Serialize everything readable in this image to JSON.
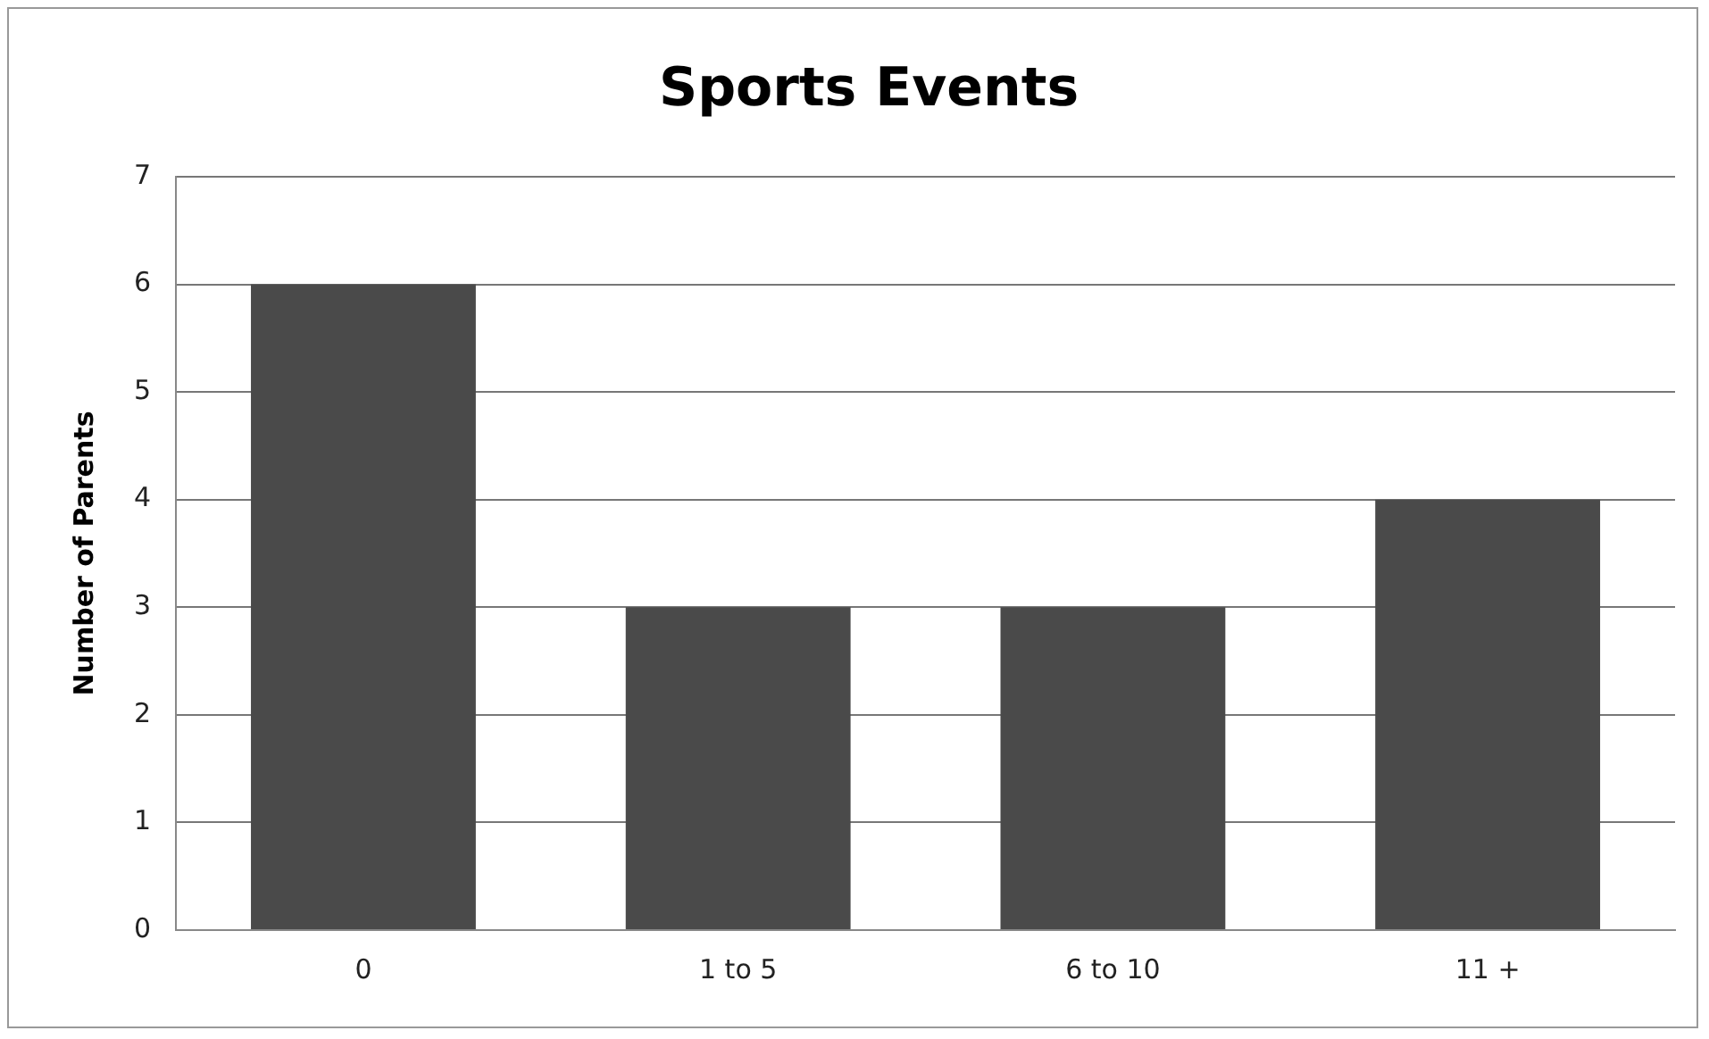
{
  "chart_data": {
    "type": "bar",
    "title": "Sports Events",
    "ylabel": "Number of Parents",
    "categories": [
      "0",
      "1 to 5",
      "6 to 10",
      "11 +"
    ],
    "values": [
      6,
      3,
      3,
      4
    ],
    "color": "#4a4a4a",
    "ylim": [
      0,
      7
    ],
    "yticks": [
      0,
      1,
      2,
      3,
      4,
      5,
      6,
      7
    ],
    "grid": "y",
    "legend": false
  }
}
